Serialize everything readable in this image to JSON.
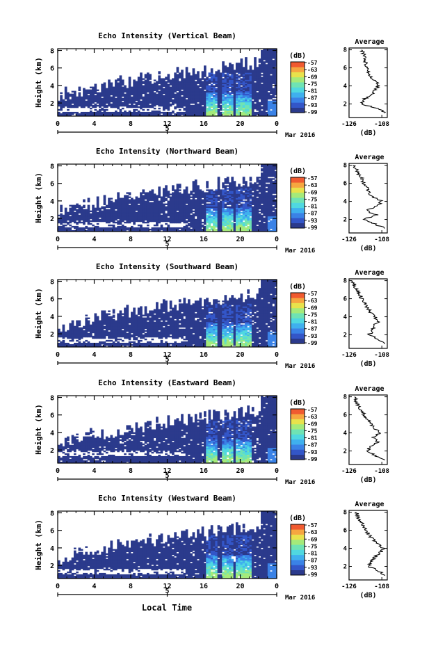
{
  "figure": {
    "x_title": "Local Time",
    "date_label": "Mar 2016",
    "day_label": "5",
    "cbar_unit": "(dB)",
    "avg_title": "Average",
    "avg_xlabel": "(dB)",
    "height_label": "Height (km)",
    "colors": [
      "#2b3a8c",
      "#3356c8",
      "#3a82e6",
      "#3fb0ee",
      "#50d8e0",
      "#6fe3b4",
      "#a5ea7a",
      "#e8e24c",
      "#f6a640",
      "#f05a30"
    ]
  },
  "chart_data": [
    {
      "type": "heatmap",
      "title": "Echo Intensity (Vertical Beam)",
      "ylabel": "Height (km)",
      "xlabel": "Local Time",
      "x_ticks": [
        "0",
        "4",
        "8",
        "12",
        "16",
        "20",
        "0"
      ],
      "y_ticks": [
        "2",
        "4",
        "6",
        "8"
      ],
      "xlim": [
        0,
        24
      ],
      "ylim": [
        0.5,
        8.2
      ],
      "colorbar": {
        "unit": "(dB)",
        "ticks": [
          "-57",
          "-63",
          "-69",
          "-75",
          "-81",
          "-87",
          "-93",
          "-99"
        ],
        "range": [
          -99,
          -57
        ]
      },
      "average": {
        "title": "Average",
        "xlabel": "(dB)",
        "x_ticks": [
          "-126",
          "-108"
        ],
        "xlim": [
          -126,
          -105
        ],
        "height": [
          1,
          1.5,
          2,
          2.5,
          3,
          3.5,
          4,
          4.5,
          5,
          5.5,
          6,
          6.5,
          7,
          7.5,
          8
        ],
        "db": [
          -106,
          -110,
          -119,
          -118,
          -114,
          -112,
          -110,
          -111,
          -114,
          -115,
          -116,
          -117,
          -117,
          -118,
          -119
        ]
      }
    },
    {
      "type": "heatmap",
      "title": "Echo Intensity (Northward Beam)",
      "ylabel": "Height (km)",
      "xlabel": "Local Time",
      "x_ticks": [
        "0",
        "4",
        "8",
        "12",
        "16",
        "20",
        "0"
      ],
      "y_ticks": [
        "2",
        "4",
        "6",
        "8"
      ],
      "xlim": [
        0,
        24
      ],
      "ylim": [
        0.5,
        8.2
      ],
      "colorbar": {
        "unit": "(dB)",
        "ticks": [
          "-57",
          "-63",
          "-69",
          "-75",
          "-81",
          "-87",
          "-93",
          "-99"
        ],
        "range": [
          -99,
          -57
        ]
      },
      "average": {
        "title": "Average",
        "xlabel": "(dB)",
        "x_ticks": [
          "-126",
          "-108"
        ],
        "xlim": [
          -126,
          -105
        ],
        "height": [
          1,
          1.5,
          2,
          2.5,
          3,
          3.5,
          4,
          4.5,
          5,
          5.5,
          6,
          6.5,
          7,
          7.5,
          8
        ],
        "db": [
          -106,
          -112,
          -118,
          -111,
          -117,
          -110,
          -108,
          -113,
          -115,
          -116,
          -118,
          -119,
          -121,
          -122,
          -124
        ]
      }
    },
    {
      "type": "heatmap",
      "title": "Echo Intensity (Southward Beam)",
      "ylabel": "Height (km)",
      "xlabel": "Local Time",
      "x_ticks": [
        "0",
        "4",
        "8",
        "12",
        "16",
        "20",
        "0"
      ],
      "y_ticks": [
        "2",
        "4",
        "6",
        "8"
      ],
      "xlim": [
        0,
        24
      ],
      "ylim": [
        0.5,
        8.2
      ],
      "colorbar": {
        "unit": "(dB)",
        "ticks": [
          "-57",
          "-63",
          "-69",
          "-75",
          "-81",
          "-87",
          "-93",
          "-99"
        ],
        "range": [
          -99,
          -57
        ]
      },
      "average": {
        "title": "Average",
        "xlabel": "(dB)",
        "x_ticks": [
          "-126",
          "-108"
        ],
        "xlim": [
          -126,
          -105
        ],
        "height": [
          1,
          1.5,
          2,
          2.5,
          3,
          3.5,
          4,
          4.5,
          5,
          5.5,
          6,
          6.5,
          7,
          7.5,
          8
        ],
        "db": [
          -106,
          -110,
          -115,
          -113,
          -112,
          -110,
          -112,
          -114,
          -116,
          -117,
          -119,
          -120,
          -122,
          -123,
          -124
        ]
      }
    },
    {
      "type": "heatmap",
      "title": "Echo Intensity (Eastward Beam)",
      "ylabel": "Height (km)",
      "xlabel": "Local Time",
      "x_ticks": [
        "0",
        "4",
        "8",
        "12",
        "16",
        "20",
        "0"
      ],
      "y_ticks": [
        "2",
        "4",
        "6",
        "8"
      ],
      "xlim": [
        0,
        24
      ],
      "ylim": [
        0.5,
        8.2
      ],
      "colorbar": {
        "unit": "(dB)",
        "ticks": [
          "-57",
          "-63",
          "-69",
          "-75",
          "-81",
          "-87",
          "-93",
          "-99"
        ],
        "range": [
          -99,
          -57
        ]
      },
      "average": {
        "title": "Average",
        "xlabel": "(dB)",
        "x_ticks": [
          "-126",
          "-108"
        ],
        "xlim": [
          -126,
          -105
        ],
        "height": [
          1,
          1.5,
          2,
          2.5,
          3,
          3.5,
          4,
          4.5,
          5,
          5.5,
          6,
          6.5,
          7,
          7.5,
          8
        ],
        "db": [
          -106,
          -112,
          -116,
          -114,
          -110,
          -113,
          -109,
          -112,
          -114,
          -116,
          -118,
          -119,
          -121,
          -122,
          -123
        ]
      }
    },
    {
      "type": "heatmap",
      "title": "Echo Intensity (Westward Beam)",
      "ylabel": "Height (km)",
      "xlabel": "Local Time",
      "x_ticks": [
        "0",
        "4",
        "8",
        "12",
        "16",
        "20",
        "0"
      ],
      "y_ticks": [
        "2",
        "4",
        "6",
        "8"
      ],
      "xlim": [
        0,
        24
      ],
      "ylim": [
        0.5,
        8.2
      ],
      "colorbar": {
        "unit": "(dB)",
        "ticks": [
          "-57",
          "-63",
          "-69",
          "-75",
          "-81",
          "-87",
          "-93",
          "-99"
        ],
        "range": [
          -99,
          -57
        ]
      },
      "average": {
        "title": "Average",
        "xlabel": "(dB)",
        "x_ticks": [
          "-126",
          "-108"
        ],
        "xlim": [
          -126,
          -105
        ],
        "height": [
          1,
          1.5,
          2,
          2.5,
          3,
          3.5,
          4,
          4.5,
          5,
          5.5,
          6,
          6.5,
          7,
          7.5,
          8
        ],
        "db": [
          -106,
          -110,
          -115,
          -114,
          -112,
          -109,
          -107,
          -110,
          -113,
          -115,
          -117,
          -118,
          -120,
          -121,
          -122
        ]
      }
    }
  ]
}
